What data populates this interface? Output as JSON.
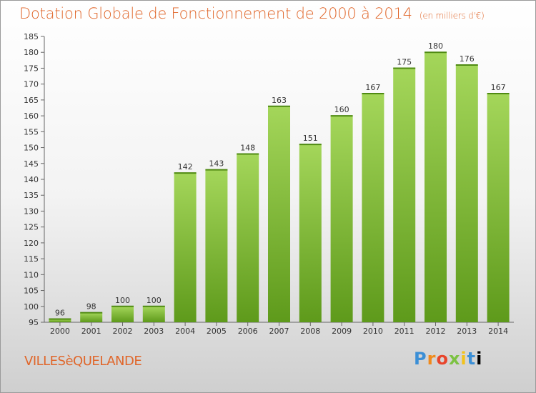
{
  "title": "Dotation Globale de Fonctionnement de 2000 à 2014",
  "subtitle": "(en milliers d'€)",
  "commune": "VILLESèQUELANDE",
  "logo": "Proxiti",
  "logo_letters": [
    "P",
    "r",
    "o",
    "x",
    "i",
    "t",
    "i"
  ],
  "colors": {
    "title": "#e0662a",
    "bar_top": "#a4d65a",
    "bar_bottom": "#5e9a1b"
  },
  "chart_data": {
    "type": "bar",
    "title": "Dotation Globale de Fonctionnement de 2000 à 2014",
    "subtitle": "(en milliers d'€)",
    "categories": [
      "2000",
      "2001",
      "2002",
      "2003",
      "2004",
      "2005",
      "2006",
      "2007",
      "2008",
      "2009",
      "2010",
      "2011",
      "2012",
      "2013",
      "2014"
    ],
    "values": [
      96,
      98,
      100,
      100,
      142,
      143,
      148,
      163,
      151,
      160,
      167,
      175,
      180,
      176,
      167
    ],
    "ylim": [
      95,
      185
    ],
    "yticks": [
      95,
      100,
      105,
      110,
      115,
      120,
      125,
      130,
      135,
      140,
      145,
      150,
      155,
      160,
      165,
      170,
      175,
      180,
      185
    ],
    "grid": false,
    "xlabel": "",
    "ylabel": ""
  }
}
